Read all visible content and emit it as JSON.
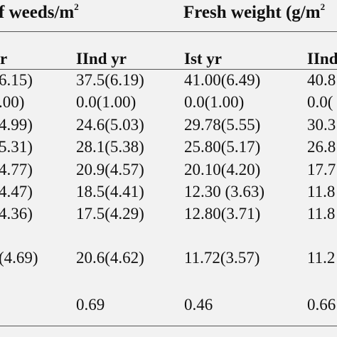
{
  "table": {
    "header_left": "f weeds/m",
    "header_left_sup": "2",
    "header_right": "Fresh weight (g/m",
    "header_right_sup": "2",
    "subheaders": [
      "r",
      "IInd yr",
      "Ist yr",
      "IInd"
    ],
    "rows": [
      [
        "6.15)",
        "37.5(6.19)",
        "41.00(6.49)",
        "40.8"
      ],
      [
        ".00)",
        "0.0(1.00)",
        "0.0(1.00)",
        "0.0("
      ],
      [
        "4.99)",
        "24.6(5.03)",
        "29.78(5.55)",
        "30.3"
      ],
      [
        "5.31)",
        "28.1(5.38)",
        "25.80(5.17)",
        "26.8"
      ],
      [
        "4.77)",
        "20.9(4.57)",
        "20.10(4.20)",
        "17.7"
      ],
      [
        "4.47)",
        "18.5(4.41)",
        "12.30 (3.63)",
        "11.8"
      ],
      [
        "4.36)",
        "17.5(4.29)",
        "12.80(3.71)",
        "11.8"
      ],
      [
        "(4.69)",
        "20.6(4.62)",
        "11.72(3.57)",
        "11.2"
      ],
      [
        "",
        "0.69",
        "0.46",
        "0.66"
      ]
    ]
  }
}
